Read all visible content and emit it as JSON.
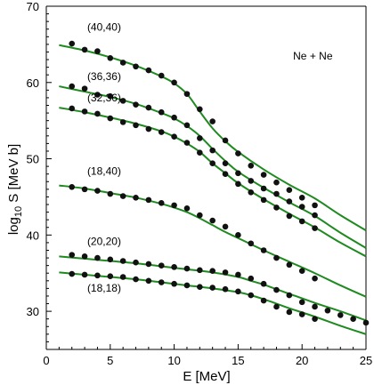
{
  "chart_data": {
    "type": "scatter",
    "xlabel": "E [MeV]",
    "ylabel_main": "log",
    "ylabel_sub": "10",
    "ylabel_rest": " S [MeV b]",
    "xlim": [
      0,
      25
    ],
    "ylim": [
      25,
      70
    ],
    "xticks": [
      0,
      5,
      10,
      15,
      20,
      25
    ],
    "yticks": [
      30,
      40,
      50,
      60,
      70
    ],
    "grid": false,
    "legend": "none",
    "annotations": [
      {
        "text": "Ne + Ne",
        "x": 19.3,
        "y": 63.0
      },
      {
        "text": "(40,40)",
        "x": 3.2,
        "y": 66.8
      },
      {
        "text": "(36,36)",
        "x": 3.2,
        "y": 60.3
      },
      {
        "text": "(32,36)",
        "x": 3.2,
        "y": 57.5
      },
      {
        "text": "(18,40)",
        "x": 3.2,
        "y": 47.9
      },
      {
        "text": "(20,20)",
        "x": 3.2,
        "y": 38.7
      },
      {
        "text": "(18,18)",
        "x": 3.2,
        "y": 32.6
      }
    ],
    "colors": {
      "points": "#111111",
      "fit": "#1f8a1f"
    },
    "series": [
      {
        "name": "(40,40)",
        "x": [
          2,
          3,
          4,
          5,
          6,
          7,
          8,
          9,
          10,
          11,
          12,
          13,
          14,
          15,
          16,
          17,
          18,
          19,
          20,
          21
        ],
        "y": [
          65.1,
          64.3,
          64.1,
          63.2,
          62.6,
          62.1,
          61.6,
          60.9,
          60.0,
          58.5,
          56.5,
          54.9,
          52.4,
          50.7,
          49.1,
          47.9,
          46.9,
          45.9,
          44.9,
          43.9
        ],
        "fit_x": [
          1,
          3,
          5,
          7,
          9,
          10,
          11,
          12,
          13,
          14,
          15,
          17,
          19,
          21,
          23,
          25
        ],
        "fit_y": [
          64.9,
          64.2,
          63.3,
          62.2,
          60.8,
          59.9,
          58.5,
          56.2,
          54.0,
          52.3,
          50.9,
          48.6,
          46.6,
          44.8,
          42.6,
          40.6
        ]
      },
      {
        "name": "(36,36)",
        "x": [
          2,
          3,
          4,
          5,
          6,
          7,
          8,
          9,
          10,
          11,
          12,
          13,
          14,
          15,
          16,
          17,
          18,
          19,
          20,
          21
        ],
        "y": [
          59.5,
          59.2,
          58.4,
          58.2,
          57.6,
          57.1,
          56.7,
          56.1,
          55.4,
          54.4,
          52.7,
          51.1,
          49.4,
          48.1,
          47.1,
          46.1,
          45.4,
          44.4,
          43.7,
          42.6
        ],
        "fit_x": [
          1,
          3,
          5,
          7,
          9,
          10,
          11,
          12,
          13,
          14,
          15,
          17,
          19,
          21,
          23,
          25
        ],
        "fit_y": [
          59.5,
          58.8,
          58.1,
          57.2,
          56.0,
          55.3,
          54.3,
          53.0,
          51.3,
          49.7,
          48.3,
          46.2,
          44.3,
          42.5,
          40.3,
          38.3
        ]
      },
      {
        "name": "(32,36)",
        "x": [
          2,
          3,
          4,
          5,
          6,
          7,
          8,
          9,
          10,
          11,
          12,
          13,
          14,
          15,
          16,
          17,
          18,
          19,
          20,
          21
        ],
        "y": [
          56.6,
          56.2,
          55.9,
          55.3,
          54.8,
          54.4,
          53.9,
          53.5,
          52.9,
          52.1,
          50.8,
          49.4,
          48.0,
          46.7,
          45.6,
          44.6,
          43.6,
          42.5,
          41.8,
          40.9
        ],
        "fit_x": [
          1,
          3,
          5,
          7,
          9,
          10,
          11,
          12,
          13,
          14,
          15,
          17,
          19,
          21,
          23,
          25
        ],
        "fit_y": [
          56.7,
          56.1,
          55.4,
          54.6,
          53.6,
          52.9,
          52.0,
          50.9,
          49.4,
          48.1,
          46.8,
          44.7,
          42.8,
          41.0,
          39.0,
          37.2
        ]
      },
      {
        "name": "(18,40)",
        "x": [
          2,
          3,
          4,
          5,
          6,
          7,
          8,
          9,
          10,
          11,
          12,
          13,
          14,
          15,
          16,
          17,
          18,
          19,
          20,
          21
        ],
        "y": [
          46.3,
          46.0,
          45.8,
          45.4,
          45.1,
          44.9,
          44.6,
          44.2,
          43.9,
          43.5,
          42.6,
          41.9,
          41.1,
          40.0,
          38.9,
          38.0,
          37.0,
          36.1,
          35.3,
          34.3
        ],
        "fit_x": [
          1,
          3,
          5,
          7,
          9,
          10,
          11,
          12,
          13,
          14,
          15,
          17,
          19,
          21,
          23,
          25
        ],
        "fit_y": [
          46.5,
          46.1,
          45.5,
          44.9,
          44.1,
          43.6,
          43.0,
          42.2,
          41.3,
          40.4,
          39.6,
          38.0,
          36.5,
          35.0,
          33.4,
          31.9
        ]
      },
      {
        "name": "(20,20)",
        "x": [
          2,
          3,
          4,
          5,
          6,
          7,
          8,
          9,
          10,
          11,
          12,
          13,
          14,
          15,
          16,
          17,
          18,
          19,
          20,
          21,
          22,
          23,
          24,
          25
        ],
        "y": [
          37.4,
          37.2,
          37.0,
          36.8,
          36.6,
          36.4,
          36.2,
          36.0,
          35.8,
          35.6,
          35.4,
          35.3,
          35.1,
          34.8,
          34.3,
          33.6,
          32.8,
          32.1,
          31.2,
          30.6,
          30.1,
          29.5,
          29.0,
          28.5
        ],
        "fit_x": [
          1,
          3,
          5,
          7,
          9,
          11,
          13,
          15,
          16,
          17,
          18,
          19,
          21,
          23,
          25
        ],
        "fit_y": [
          37.2,
          36.9,
          36.6,
          36.3,
          35.9,
          35.5,
          35.1,
          34.5,
          34.0,
          33.5,
          32.9,
          32.3,
          31.1,
          30.0,
          28.8
        ]
      },
      {
        "name": "(18,18)",
        "x": [
          2,
          3,
          4,
          5,
          6,
          7,
          8,
          9,
          10,
          11,
          12,
          13,
          14,
          15,
          16,
          17,
          18,
          19,
          20,
          21
        ],
        "y": [
          34.9,
          34.8,
          34.7,
          34.6,
          34.5,
          34.2,
          34.0,
          33.8,
          33.6,
          33.4,
          33.2,
          33.1,
          32.9,
          32.6,
          32.1,
          31.4,
          30.6,
          29.9,
          29.6,
          29.0
        ],
        "fit_x": [
          1,
          3,
          5,
          7,
          9,
          11,
          13,
          15,
          16,
          17,
          18,
          19,
          21,
          23,
          25
        ],
        "fit_y": [
          35.1,
          34.8,
          34.5,
          34.2,
          33.8,
          33.4,
          33.0,
          32.5,
          32.1,
          31.6,
          31.0,
          30.4,
          29.3,
          28.1,
          27.0
        ]
      }
    ]
  }
}
